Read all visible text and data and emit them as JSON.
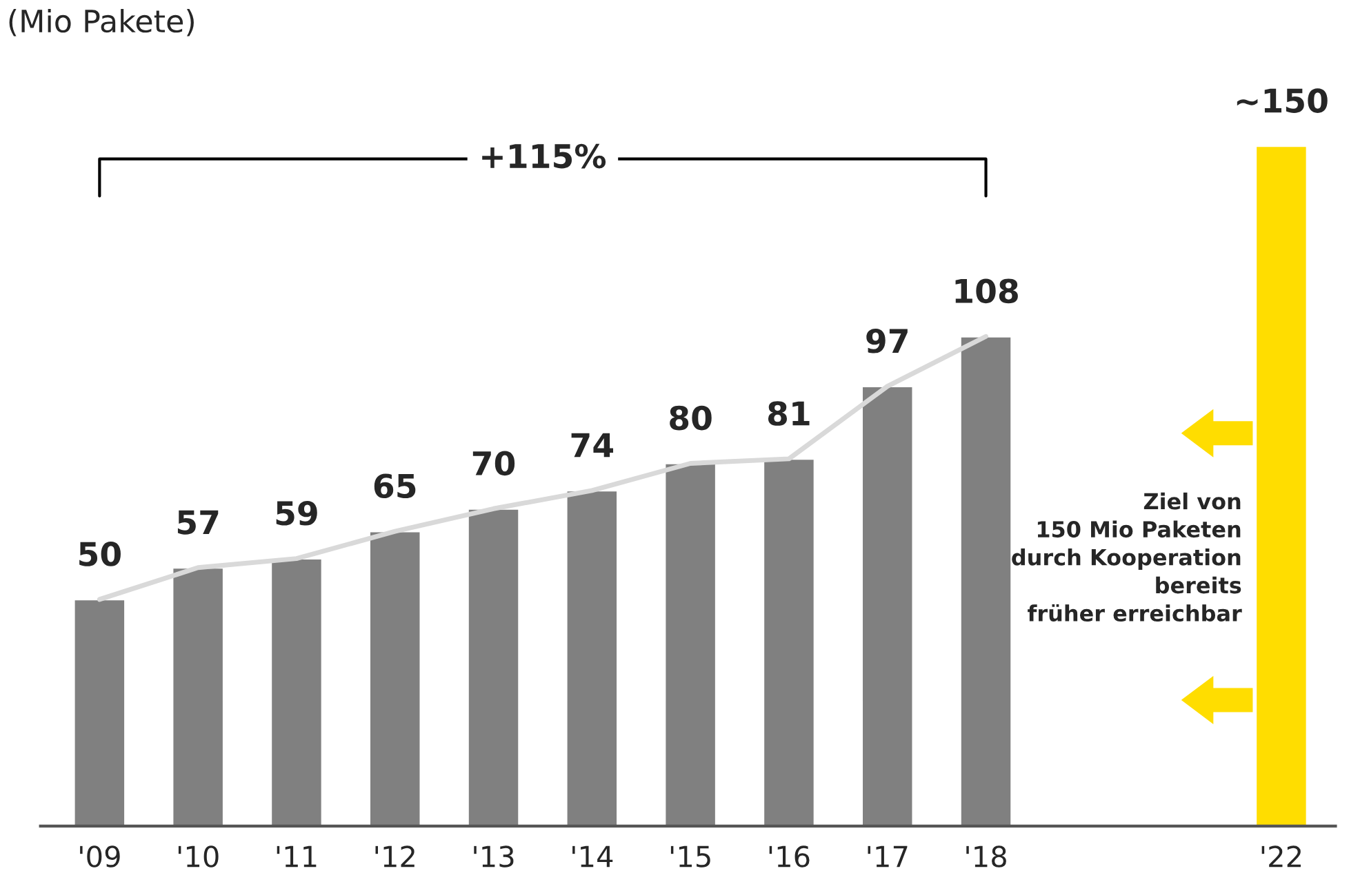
{
  "chart_data": {
    "type": "bar",
    "title": "(Mio Pakete)",
    "categories": [
      "'09",
      "'10",
      "'11",
      "'12",
      "'13",
      "'14",
      "'15",
      "'16",
      "'17",
      "'18",
      null,
      null,
      "'22"
    ],
    "series": [
      {
        "values": [
          50,
          57,
          59,
          65,
          70,
          74,
          80,
          81,
          97,
          108,
          null,
          null,
          150
        ],
        "colors": [
          "#808080",
          "#808080",
          "#808080",
          "#808080",
          "#808080",
          "#808080",
          "#808080",
          "#808080",
          "#808080",
          "#808080",
          "#808080",
          "#808080",
          "#ffdd00"
        ],
        "value_labels": [
          "50",
          "57",
          "59",
          "65",
          "70",
          "74",
          "80",
          "81",
          "97",
          "108",
          null,
          null,
          "~150"
        ]
      },
      {
        "type": "line",
        "color": "#d9d9d9",
        "values": [
          50,
          57,
          59,
          65,
          70,
          74,
          80,
          81,
          97,
          108,
          null,
          null,
          null
        ]
      }
    ],
    "annotations": [
      "+115%",
      "Ziel von\n150 Mio Paketen\ndurch Kooperation\nbereits\nfrüher erreichbar"
    ],
    "grid": false,
    "legend": false
  }
}
